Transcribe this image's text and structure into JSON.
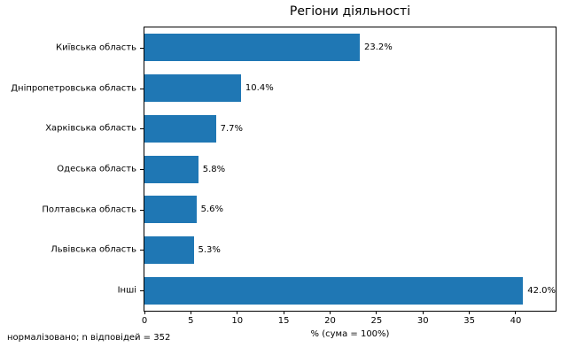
{
  "chart_data": {
    "type": "bar",
    "orientation": "horizontal",
    "title": "Регіони діяльності",
    "categories": [
      "Київська область",
      "Дніпропетровська область",
      "Харківська область",
      "Одеська область",
      "Полтавська область",
      "Львівська область",
      "Інші"
    ],
    "values": [
      23.2,
      10.4,
      7.7,
      5.8,
      5.6,
      5.3,
      42.0
    ],
    "value_labels": [
      "23.2%",
      "10.4%",
      "7.7%",
      "5.8%",
      "5.6%",
      "5.3%",
      "42.0%"
    ],
    "xlabel": "% (сума = 100%)",
    "ylabel": "",
    "xlim": [
      0,
      44.3
    ],
    "xticks": [
      0,
      5,
      10,
      15,
      20,
      25,
      30,
      35,
      40
    ],
    "grid": false,
    "legend": "none",
    "note": "нормалізовано; n відповідей = 352"
  },
  "colors": {
    "bar": "#1f77b4",
    "spine": "#000000",
    "text": "#000000",
    "background": "#ffffff"
  }
}
